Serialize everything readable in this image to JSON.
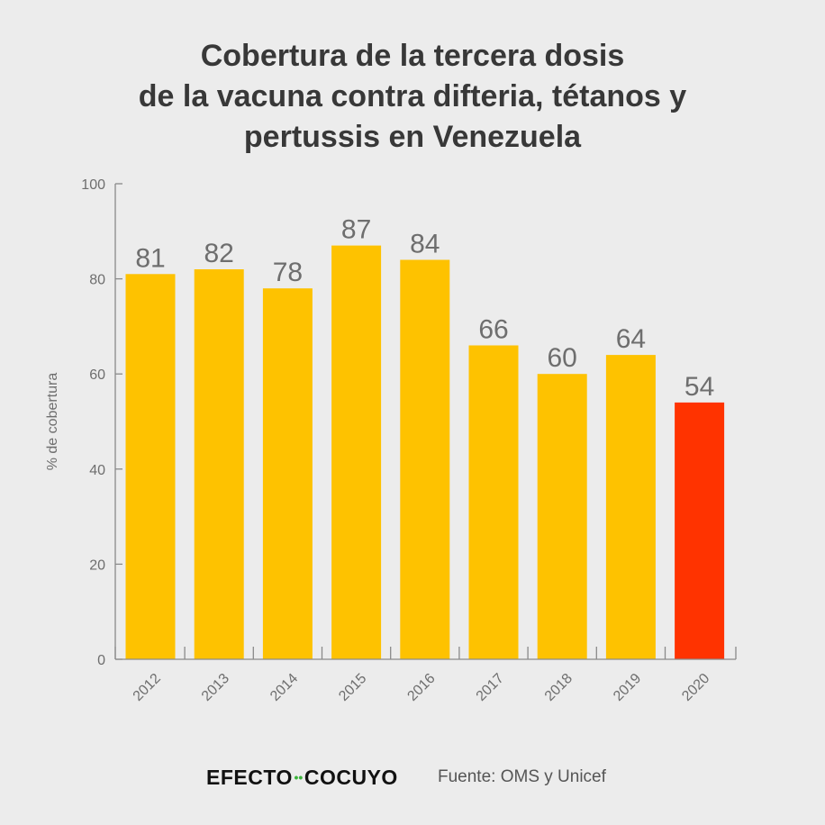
{
  "title_lines": [
    "Cobertura de la tercera dosis",
    "de la vacuna contra difteria, tétanos y",
    "pertussis en Venezuela"
  ],
  "chart_data": {
    "type": "bar",
    "title": "Cobertura de la tercera dosis de la vacuna contra difteria, tétanos y pertussis en Venezuela",
    "categories": [
      "2012",
      "2013",
      "2014",
      "2015",
      "2016",
      "2017",
      "2018",
      "2019",
      "2020"
    ],
    "values": [
      81,
      82,
      78,
      87,
      84,
      66,
      60,
      64,
      54
    ],
    "data_labels": [
      "81",
      "82",
      "78",
      "87",
      "84",
      "66",
      "60",
      "64",
      "54"
    ],
    "xlabel": "",
    "ylabel": "% de cobertura",
    "ylim": [
      0,
      100
    ],
    "yticks": [
      0,
      20,
      40,
      60,
      80,
      100
    ],
    "ytick_labels": [
      "0",
      "20",
      "40",
      "60",
      "80",
      "100"
    ],
    "grid": false,
    "highlight_index": 8
  },
  "colors": {
    "background": "#ececec",
    "bar": "#fec200",
    "highlight_bar": "#ff3300",
    "axis": "#8a8a8a",
    "text": "#6e6e6e",
    "title": "#383838",
    "brand_dots": "#3cb43c"
  },
  "footer": {
    "brand_left": "EFECTO",
    "brand_dots": "••",
    "brand_right": "COCUYO",
    "source": "Fuente: OMS y Unicef"
  }
}
